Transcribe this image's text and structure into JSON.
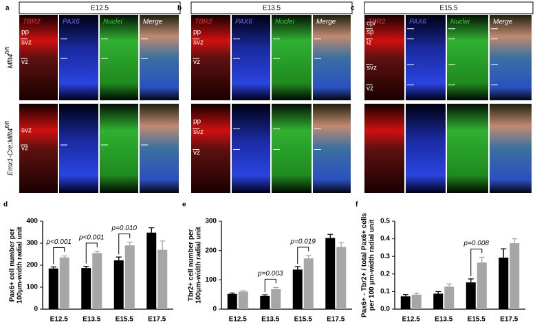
{
  "panels": [
    {
      "letter": "a",
      "stage": "E12.5",
      "channels": [
        "TBR2",
        "PAX6",
        "Nuclei",
        "Merge"
      ],
      "zones": [
        [
          "pp",
          "svz",
          "vz"
        ],
        [
          "svz",
          "vz"
        ]
      ]
    },
    {
      "letter": "b",
      "stage": "E13.5",
      "channels": [
        "TBR2",
        "PAX6",
        "Nuclei",
        "Merge"
      ],
      "zones": [
        [
          "pp",
          "svz",
          "vz"
        ],
        [
          "pp",
          "svz",
          "vz"
        ]
      ]
    },
    {
      "letter": "c",
      "stage": "E15.5",
      "channels": [
        "TBR2",
        "PAX6",
        "Nuclei",
        "Merge"
      ],
      "zones": [
        [
          "cp/",
          "sp",
          "iz",
          "svz",
          "vz"
        ],
        []
      ]
    }
  ],
  "row_labels": [
    {
      "main": "Mllt4",
      "sup": "fl/fl"
    },
    {
      "main": "Emx1-Cre;Mllt4",
      "sup": "fl/fl"
    }
  ],
  "chart_data": [
    {
      "type": "bar",
      "panel": "d",
      "y_label": [
        "Pax6+ cell number per",
        "100μm-width radial unit"
      ],
      "categories": [
        "E12.5",
        "E13.5",
        "E15.5",
        "E17.5"
      ],
      "series": [
        {
          "color": "#000000",
          "values": [
            185,
            187,
            222,
            348
          ],
          "errors": [
            7,
            8,
            15,
            22
          ]
        },
        {
          "color": "#a6a6a6",
          "values": [
            235,
            255,
            290,
            270
          ],
          "errors": [
            7,
            8,
            15,
            40
          ]
        }
      ],
      "ylim": [
        0,
        400
      ],
      "yticks": [
        0,
        100,
        200,
        300,
        400
      ],
      "annotations": [
        {
          "text": "p<0.001",
          "category": "E12.5"
        },
        {
          "text": "p<0.001",
          "category": "E13.5"
        },
        {
          "text": "p=0.010",
          "category": "E15.5"
        }
      ]
    },
    {
      "type": "bar",
      "panel": "e",
      "y_label": [
        "Tbr2+ cell number per",
        "100μm-width radial unit"
      ],
      "categories": [
        "E12.5",
        "E13.5",
        "E15.5",
        "E17.5"
      ],
      "series": [
        {
          "color": "#000000",
          "values": [
            52,
            45,
            135,
            243
          ],
          "errors": [
            3,
            4,
            10,
            12
          ]
        },
        {
          "color": "#a6a6a6",
          "values": [
            60,
            68,
            173,
            212
          ],
          "errors": [
            3,
            6,
            10,
            15
          ]
        }
      ],
      "ylim": [
        0,
        300
      ],
      "yticks": [
        0,
        100,
        200,
        300
      ],
      "annotations": [
        {
          "text": "p=0.003",
          "category": "E13.5"
        },
        {
          "text": "p=0.019",
          "category": "E15.5"
        }
      ]
    },
    {
      "type": "bar",
      "panel": "f",
      "y_label": [
        "Pax6+ - Tbr2+ / total Pax6+ cells",
        "per 100 μm-width radial unit"
      ],
      "categories": [
        "E12.5",
        "E13.5",
        "E15.5",
        "E17.5"
      ],
      "series": [
        {
          "color": "#000000",
          "values": [
            0.073,
            0.088,
            0.152,
            0.293
          ],
          "errors": [
            0.01,
            0.012,
            0.02,
            0.05
          ]
        },
        {
          "color": "#a6a6a6",
          "values": [
            0.082,
            0.128,
            0.265,
            0.375
          ],
          "errors": [
            0.008,
            0.015,
            0.03,
            0.025
          ]
        }
      ],
      "ylim": [
        0,
        0.5
      ],
      "yticks": [
        {
          "value": 0,
          "label": "0.0"
        },
        0.1,
        0.2,
        0.3,
        0.4,
        0.5
      ],
      "annotations": [
        {
          "text": "p=0.008",
          "category": "E15.5"
        }
      ]
    }
  ]
}
